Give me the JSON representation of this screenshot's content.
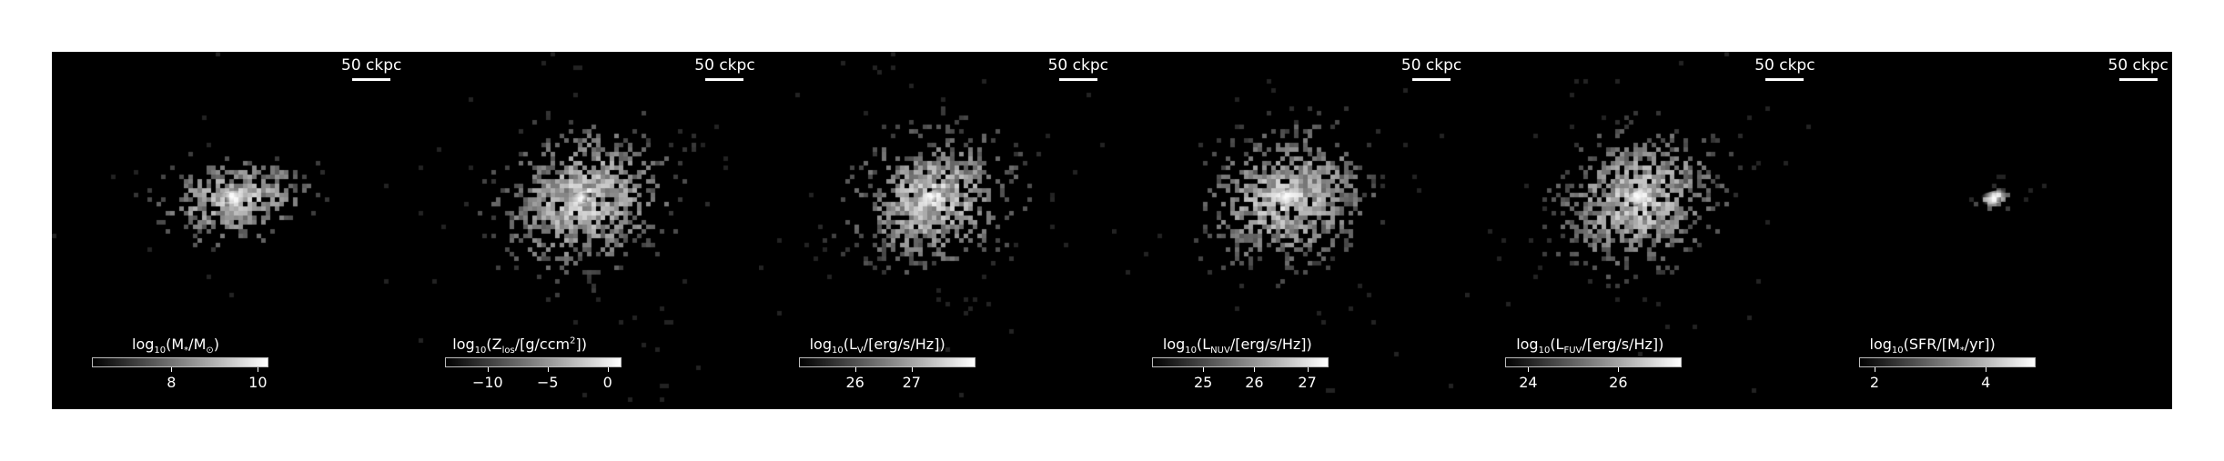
{
  "scale_bar": "50 ckpc",
  "panels": [
    {
      "id": "stellar-mass",
      "cbar_parts": [
        "log",
        "10",
        "(M",
        "*",
        "/M",
        "⊙",
        ")"
      ],
      "ticks": [
        {
          "label": "8",
          "frac": 0.45
        },
        {
          "label": "10",
          "frac": 0.94
        }
      ],
      "blob": {
        "spread_x": 0.16,
        "spread_y": 0.09,
        "core": 1.0,
        "tilt": -0.12,
        "n": 420,
        "outliers": 0.02
      }
    },
    {
      "id": "metallicity",
      "cbar_parts": [
        "log",
        "10",
        "(Z",
        "los",
        "/[g/ccm",
        "2",
        "])"
      ],
      "ticks": [
        {
          "label": "−10",
          "frac": 0.24
        },
        {
          "label": "−5",
          "frac": 0.58
        },
        {
          "label": "0",
          "frac": 0.92
        }
      ],
      "blob": {
        "spread_x": 0.19,
        "spread_y": 0.15,
        "core": 0.9,
        "tilt": -0.35,
        "n": 900,
        "outliers": 0.08
      }
    },
    {
      "id": "v-luminosity",
      "cbar_parts": [
        "log",
        "10",
        "(L",
        "V",
        "/[erg/s/Hz])"
      ],
      "ticks": [
        {
          "label": "26",
          "frac": 0.32
        },
        {
          "label": "27",
          "frac": 0.64
        }
      ],
      "blob": {
        "spread_x": 0.18,
        "spread_y": 0.14,
        "core": 1.0,
        "tilt": -0.35,
        "n": 900,
        "outliers": 0.08
      }
    },
    {
      "id": "nuv-luminosity",
      "cbar_parts": [
        "log",
        "10",
        "(L",
        "NUV",
        "/[erg/s/Hz])"
      ],
      "ticks": [
        {
          "label": "25",
          "frac": 0.29
        },
        {
          "label": "26",
          "frac": 0.58
        },
        {
          "label": "27",
          "frac": 0.88
        }
      ],
      "blob": {
        "spread_x": 0.18,
        "spread_y": 0.14,
        "core": 1.0,
        "tilt": -0.35,
        "n": 900,
        "outliers": 0.08
      }
    },
    {
      "id": "fuv-luminosity",
      "cbar_parts": [
        "log",
        "10",
        "(L",
        "FUV",
        "/[erg/s/Hz])"
      ],
      "ticks": [
        {
          "label": "24",
          "frac": 0.13
        },
        {
          "label": "26",
          "frac": 0.64
        }
      ],
      "blob": {
        "spread_x": 0.18,
        "spread_y": 0.14,
        "core": 1.0,
        "tilt": -0.35,
        "n": 900,
        "outliers": 0.08
      }
    },
    {
      "id": "sfr",
      "cbar_parts": [
        "log",
        "10",
        "(SFR/[M",
        "*",
        "/yr])"
      ],
      "ticks": [
        {
          "label": "2",
          "frac": 0.09
        },
        {
          "label": "4",
          "frac": 0.72
        }
      ],
      "blob": {
        "spread_x": 0.04,
        "spread_y": 0.02,
        "core": 1.0,
        "tilt": -0.2,
        "n": 40,
        "outliers": 0.15
      }
    }
  ]
}
